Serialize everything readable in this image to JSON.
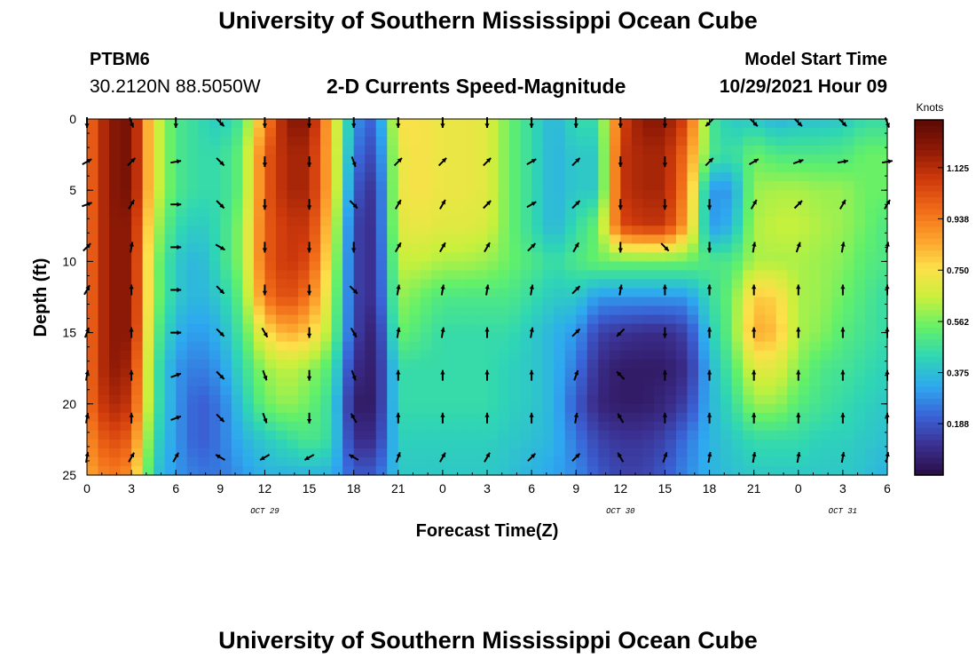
{
  "title": "University of Southern Mississippi Ocean Cube",
  "title_repeat": "University of Southern Mississippi Ocean Cube",
  "station": {
    "id": "PTBM6",
    "coords": "30.2120N  88.5050W"
  },
  "plot_title": "2-D Currents Speed-Magnitude",
  "model": {
    "label": "Model Start Time",
    "time": "10/29/2021 Hour 09"
  },
  "colors": {
    "colormap": [
      "#2a0c45",
      "#3b2f8f",
      "#3a62d6",
      "#2ea8f0",
      "#2fd6b4",
      "#62f06a",
      "#c8f03c",
      "#fde04a",
      "#fca02c",
      "#f06a18",
      "#cf3a0c",
      "#8f1a06",
      "#5a0a04"
    ],
    "arrow": "#000000",
    "axis": "#000000"
  },
  "chart_data": {
    "type": "heatmap",
    "title": "2-D Currents Speed-Magnitude",
    "xlabel": "Forecast Time(Z)",
    "ylabel": "Depth (ft)",
    "colorbar_label": "Knots",
    "x_tick_labels": [
      "0",
      "3",
      "6",
      "9",
      "12",
      "15",
      "18",
      "21",
      "0",
      "3",
      "6",
      "9",
      "12",
      "15",
      "18",
      "21",
      "0",
      "3",
      "6"
    ],
    "x_range_hours": [
      0,
      54
    ],
    "date_labels": [
      {
        "text": "OCT 29",
        "hour": 12
      },
      {
        "text": "OCT 30",
        "hour": 36
      },
      {
        "text": "OCT 31",
        "hour": 51
      }
    ],
    "y_ticks": [
      0,
      5,
      10,
      15,
      20,
      25
    ],
    "ylim": [
      25,
      0
    ],
    "colorbar_ticks": [
      "0.188",
      "0.375",
      "0.562",
      "0.750",
      "0.938",
      "1.125"
    ],
    "colorbar_range": [
      0,
      1.3
    ],
    "depths_ft": [
      0,
      2.5,
      5,
      7.5,
      10,
      12.5,
      15,
      17.5,
      20,
      22.5,
      25
    ],
    "times_hr": [
      0,
      1.5,
      3,
      4.5,
      6,
      7.5,
      9,
      10.5,
      12,
      13.5,
      15,
      16.5,
      18,
      19.5,
      21,
      22.5,
      24,
      25.5,
      27,
      28.5,
      30,
      31.5,
      33,
      34.5,
      36,
      37.5,
      39,
      40.5,
      42,
      43.5,
      45,
      46.5,
      48,
      49.5,
      51,
      52.5,
      54
    ],
    "speed_knots": [
      [
        0.95,
        1.2,
        1.25,
        0.7,
        0.5,
        0.45,
        0.4,
        0.5,
        0.9,
        1.2,
        1.2,
        0.8,
        0.3,
        0.2,
        0.75,
        0.75,
        0.72,
        0.72,
        0.7,
        0.55,
        0.45,
        0.35,
        0.45,
        0.45,
        1.05,
        1.2,
        1.2,
        1.05,
        0.5,
        0.4,
        0.4,
        0.35,
        0.38,
        0.38,
        0.4,
        0.45,
        0.45
      ],
      [
        0.95,
        1.2,
        1.25,
        0.7,
        0.5,
        0.45,
        0.45,
        0.55,
        1.0,
        1.15,
        1.15,
        0.8,
        0.25,
        0.15,
        0.72,
        0.75,
        0.72,
        0.72,
        0.7,
        0.55,
        0.45,
        0.35,
        0.4,
        0.4,
        1.1,
        1.15,
        1.15,
        0.95,
        0.5,
        0.45,
        0.55,
        0.5,
        0.5,
        0.5,
        0.5,
        0.55,
        0.55
      ],
      [
        0.95,
        1.2,
        1.25,
        0.7,
        0.5,
        0.45,
        0.45,
        0.55,
        1.0,
        1.15,
        1.15,
        0.8,
        0.2,
        0.1,
        0.72,
        0.75,
        0.72,
        0.72,
        0.7,
        0.55,
        0.45,
        0.35,
        0.4,
        0.4,
        1.1,
        1.15,
        1.15,
        0.9,
        0.3,
        0.3,
        0.6,
        0.62,
        0.62,
        0.6,
        0.6,
        0.55,
        0.55
      ],
      [
        0.95,
        1.2,
        1.2,
        0.65,
        0.45,
        0.4,
        0.45,
        0.6,
        1.0,
        1.1,
        1.1,
        0.75,
        0.15,
        0.1,
        0.7,
        0.72,
        0.7,
        0.7,
        0.68,
        0.55,
        0.45,
        0.35,
        0.45,
        0.55,
        1.05,
        1.1,
        1.1,
        0.85,
        0.3,
        0.35,
        0.62,
        0.65,
        0.65,
        0.62,
        0.6,
        0.55,
        0.5
      ],
      [
        0.95,
        1.2,
        1.2,
        0.6,
        0.4,
        0.35,
        0.45,
        0.6,
        1.0,
        1.1,
        1.05,
        0.7,
        0.15,
        0.1,
        0.65,
        0.65,
        0.62,
        0.62,
        0.6,
        0.55,
        0.5,
        0.45,
        0.5,
        0.55,
        0.55,
        0.55,
        0.55,
        0.55,
        0.5,
        0.5,
        0.62,
        0.62,
        0.62,
        0.6,
        0.58,
        0.52,
        0.5
      ],
      [
        0.95,
        1.2,
        1.2,
        0.6,
        0.4,
        0.35,
        0.4,
        0.55,
        0.95,
        1.05,
        0.95,
        0.65,
        0.15,
        0.1,
        0.6,
        0.55,
        0.5,
        0.5,
        0.5,
        0.5,
        0.45,
        0.4,
        0.4,
        0.3,
        0.3,
        0.3,
        0.3,
        0.3,
        0.45,
        0.55,
        0.8,
        0.78,
        0.62,
        0.6,
        0.55,
        0.5,
        0.45
      ],
      [
        0.95,
        1.2,
        1.2,
        0.55,
        0.35,
        0.3,
        0.35,
        0.5,
        0.75,
        0.85,
        0.8,
        0.6,
        0.15,
        0.05,
        0.55,
        0.5,
        0.45,
        0.45,
        0.45,
        0.45,
        0.4,
        0.35,
        0.3,
        0.15,
        0.12,
        0.1,
        0.1,
        0.15,
        0.4,
        0.55,
        0.85,
        0.82,
        0.62,
        0.58,
        0.52,
        0.48,
        0.45
      ],
      [
        0.95,
        1.2,
        1.15,
        0.5,
        0.3,
        0.25,
        0.3,
        0.45,
        0.6,
        0.65,
        0.6,
        0.5,
        0.1,
        0.05,
        0.45,
        0.45,
        0.45,
        0.45,
        0.45,
        0.42,
        0.4,
        0.35,
        0.25,
        0.1,
        0.05,
        0.05,
        0.05,
        0.1,
        0.35,
        0.5,
        0.7,
        0.7,
        0.58,
        0.5,
        0.48,
        0.45,
        0.42
      ],
      [
        0.95,
        1.15,
        1.1,
        0.5,
        0.3,
        0.2,
        0.25,
        0.4,
        0.55,
        0.6,
        0.55,
        0.45,
        0.05,
        0.05,
        0.45,
        0.45,
        0.45,
        0.45,
        0.45,
        0.42,
        0.4,
        0.35,
        0.2,
        0.08,
        0.05,
        0.05,
        0.08,
        0.15,
        0.35,
        0.45,
        0.6,
        0.6,
        0.52,
        0.48,
        0.45,
        0.42,
        0.4
      ],
      [
        0.9,
        1.05,
        1.0,
        0.45,
        0.3,
        0.2,
        0.25,
        0.35,
        0.4,
        0.45,
        0.5,
        0.45,
        0.1,
        0.1,
        0.42,
        0.42,
        0.42,
        0.42,
        0.42,
        0.4,
        0.38,
        0.35,
        0.25,
        0.15,
        0.12,
        0.12,
        0.15,
        0.25,
        0.35,
        0.4,
        0.45,
        0.45,
        0.45,
        0.42,
        0.42,
        0.4,
        0.38
      ],
      [
        0.85,
        0.95,
        0.9,
        0.4,
        0.3,
        0.25,
        0.25,
        0.3,
        0.35,
        0.35,
        0.35,
        0.35,
        0.2,
        0.2,
        0.4,
        0.4,
        0.4,
        0.4,
        0.4,
        0.38,
        0.35,
        0.32,
        0.28,
        0.2,
        0.15,
        0.15,
        0.2,
        0.28,
        0.35,
        0.38,
        0.4,
        0.4,
        0.4,
        0.4,
        0.4,
        0.38,
        0.35
      ]
    ],
    "arrow_times_hr": [
      0,
      3,
      6,
      9,
      12,
      15,
      18,
      21,
      24,
      27,
      30,
      33,
      36,
      39,
      42,
      45,
      48,
      51,
      54
    ],
    "arrow_depths_ft": [
      0,
      3,
      6,
      9,
      12,
      15,
      18,
      21,
      24
    ],
    "arrow_dir_deg": [
      [
        180,
        160,
        180,
        135,
        180,
        180,
        180,
        180,
        180,
        180,
        180,
        180,
        180,
        180,
        225,
        135,
        135,
        135,
        160
      ],
      [
        60,
        45,
        80,
        135,
        180,
        180,
        160,
        45,
        45,
        45,
        60,
        45,
        180,
        180,
        45,
        60,
        70,
        80,
        80
      ],
      [
        70,
        30,
        90,
        135,
        180,
        180,
        135,
        30,
        30,
        45,
        60,
        45,
        180,
        180,
        180,
        30,
        45,
        30,
        30
      ],
      [
        45,
        10,
        90,
        120,
        180,
        180,
        180,
        30,
        30,
        30,
        45,
        30,
        180,
        135,
        180,
        10,
        20,
        10,
        10
      ],
      [
        30,
        0,
        90,
        135,
        180,
        180,
        135,
        10,
        10,
        10,
        10,
        45,
        10,
        0,
        0,
        0,
        0,
        0,
        0
      ],
      [
        20,
        0,
        90,
        135,
        150,
        180,
        150,
        10,
        10,
        0,
        10,
        45,
        225,
        180,
        0,
        0,
        0,
        0,
        0
      ],
      [
        10,
        0,
        70,
        135,
        160,
        180,
        160,
        0,
        0,
        0,
        0,
        20,
        315,
        0,
        0,
        0,
        0,
        0,
        0
      ],
      [
        10,
        0,
        70,
        135,
        160,
        180,
        330,
        0,
        0,
        0,
        0,
        10,
        330,
        0,
        0,
        0,
        0,
        0,
        0
      ],
      [
        10,
        30,
        30,
        300,
        240,
        240,
        300,
        20,
        30,
        30,
        45,
        45,
        330,
        20,
        10,
        10,
        10,
        10,
        10
      ]
    ]
  }
}
